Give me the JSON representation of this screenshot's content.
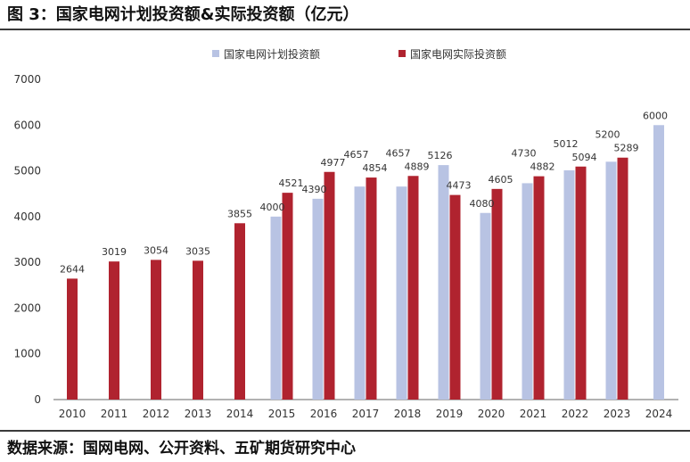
{
  "header": {
    "title": "图 3：国家电网计划投资额&实际投资额（亿元）"
  },
  "footer": {
    "source": "数据来源：国网电网、公开资料、五矿期货研究中心"
  },
  "colors": {
    "planned": "#b8c3e3",
    "actual": "#b0232f",
    "axis": "#666666"
  },
  "chart_data": {
    "type": "bar",
    "title": "国家电网计划投资额&实际投资额（亿元）",
    "xlabel": "",
    "ylabel": "",
    "ylim": [
      0,
      7000
    ],
    "yticks": [
      0,
      1000,
      2000,
      3000,
      4000,
      5000,
      6000,
      7000
    ],
    "legend_position": "top-center",
    "categories": [
      "2010",
      "2011",
      "2012",
      "2013",
      "2014",
      "2015",
      "2016",
      "2017",
      "2018",
      "2019",
      "2020",
      "2021",
      "2022",
      "2023",
      "2024"
    ],
    "series": [
      {
        "name": "国家电网计划投资额",
        "values": [
          null,
          null,
          null,
          null,
          null,
          4000,
          4390,
          4657,
          4657,
          5126,
          4080,
          4730,
          5012,
          5200,
          6000
        ]
      },
      {
        "name": "国家电网实际投资额",
        "values": [
          2644,
          3019,
          3054,
          3035,
          3855,
          4521,
          4977,
          4854,
          4889,
          4473,
          4605,
          4882,
          5094,
          5289,
          null
        ]
      }
    ]
  }
}
